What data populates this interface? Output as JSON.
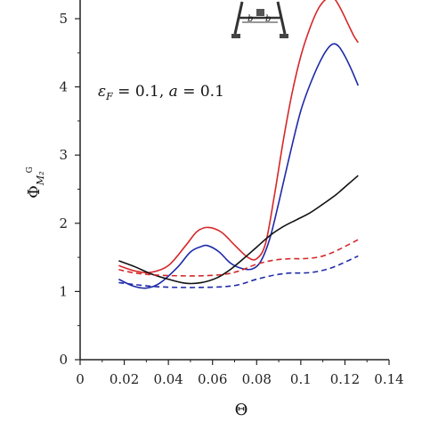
{
  "chart_data": {
    "type": "line",
    "xlabel": "Θ",
    "ylabel": "Φ",
    "ylabel_sub": "M₂",
    "ylabel_sup": "G",
    "annotation": "εF = 0.1, a = 0.1",
    "annotation_parts": {
      "eps": "ε",
      "eps_sub": "F",
      "rest1": " = 0.1, ",
      "a": "a",
      "rest2": " = 0.1"
    },
    "xlim": [
      0,
      0.14
    ],
    "ylim": [
      0,
      5.3
    ],
    "xticks": [
      "0",
      "0.02",
      "0.04",
      "0.06",
      "0.08",
      "0.1",
      "0.12",
      "0.14"
    ],
    "yticks": [
      "0",
      "1",
      "2",
      "3",
      "4",
      "5"
    ],
    "grid": false,
    "series": [
      {
        "color": "#d62728",
        "dash": false,
        "x": [
          0.0175,
          0.025,
          0.032,
          0.04,
          0.048,
          0.053,
          0.058,
          0.064,
          0.07,
          0.076,
          0.08,
          0.084,
          0.088,
          0.092,
          0.096,
          0.1,
          0.104,
          0.108,
          0.112,
          0.115,
          0.118,
          0.121,
          0.124,
          0.126
        ],
        "y": [
          1.38,
          1.3,
          1.28,
          1.38,
          1.68,
          1.88,
          1.94,
          1.87,
          1.68,
          1.5,
          1.48,
          1.7,
          2.4,
          3.2,
          3.9,
          4.45,
          4.85,
          5.15,
          5.3,
          5.3,
          5.15,
          4.95,
          4.75,
          4.65
        ]
      },
      {
        "color": "#1f2aa8",
        "dash": false,
        "x": [
          0.0175,
          0.024,
          0.03,
          0.036,
          0.044,
          0.05,
          0.055,
          0.058,
          0.063,
          0.068,
          0.073,
          0.078,
          0.082,
          0.086,
          0.09,
          0.095,
          0.1,
          0.105,
          0.11,
          0.114,
          0.117,
          0.12,
          0.123,
          0.126
        ],
        "y": [
          1.18,
          1.08,
          1.05,
          1.12,
          1.35,
          1.58,
          1.66,
          1.67,
          1.58,
          1.42,
          1.34,
          1.33,
          1.45,
          1.78,
          2.3,
          3.0,
          3.65,
          4.1,
          4.45,
          4.62,
          4.6,
          4.45,
          4.25,
          4.02
        ]
      },
      {
        "color": "#111111",
        "dash": false,
        "x": [
          0.0175,
          0.025,
          0.032,
          0.04,
          0.048,
          0.055,
          0.062,
          0.068,
          0.074,
          0.08,
          0.086,
          0.092,
          0.098,
          0.104,
          0.11,
          0.116,
          0.121,
          0.126
        ],
        "y": [
          1.45,
          1.36,
          1.26,
          1.18,
          1.12,
          1.13,
          1.2,
          1.32,
          1.48,
          1.65,
          1.82,
          1.95,
          2.05,
          2.15,
          2.28,
          2.42,
          2.56,
          2.7
        ]
      },
      {
        "color": "#d62728",
        "dash": true,
        "x": [
          0.0175,
          0.025,
          0.035,
          0.045,
          0.055,
          0.065,
          0.072,
          0.08,
          0.088,
          0.095,
          0.1,
          0.105,
          0.11,
          0.115,
          0.12,
          0.126
        ],
        "y": [
          1.32,
          1.27,
          1.24,
          1.23,
          1.23,
          1.25,
          1.3,
          1.4,
          1.46,
          1.48,
          1.48,
          1.49,
          1.52,
          1.58,
          1.66,
          1.76
        ]
      },
      {
        "color": "#1f2aa8",
        "dash": true,
        "x": [
          0.0175,
          0.025,
          0.035,
          0.045,
          0.055,
          0.065,
          0.072,
          0.08,
          0.088,
          0.095,
          0.1,
          0.105,
          0.11,
          0.115,
          0.12,
          0.126
        ],
        "y": [
          1.13,
          1.1,
          1.07,
          1.06,
          1.06,
          1.07,
          1.1,
          1.18,
          1.24,
          1.27,
          1.27,
          1.28,
          1.31,
          1.36,
          1.43,
          1.52
        ]
      }
    ]
  }
}
